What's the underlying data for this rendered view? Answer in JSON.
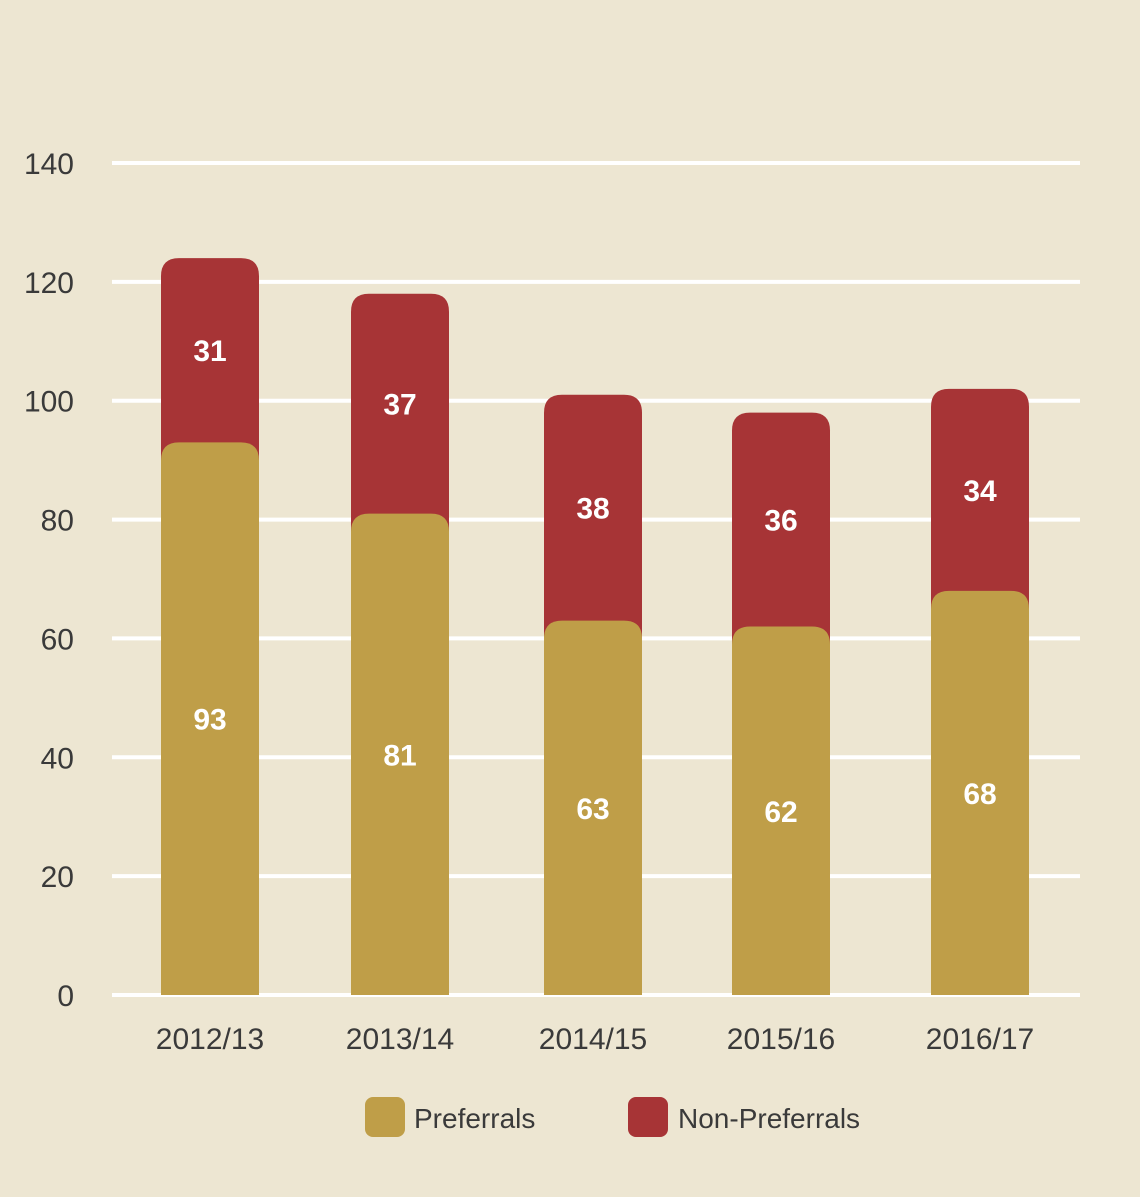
{
  "chart_data": {
    "type": "bar",
    "stacked": true,
    "categories": [
      "2012/13",
      "2013/14",
      "2014/15",
      "2015/16",
      "2016/17"
    ],
    "series": [
      {
        "name": "Preferrals",
        "values": [
          93,
          81,
          63,
          62,
          68
        ],
        "color": "#bf9e48"
      },
      {
        "name": "Non-Preferrals",
        "values": [
          31,
          37,
          38,
          36,
          34
        ],
        "color": "#a73436"
      }
    ],
    "ylim": [
      0,
      140
    ],
    "yticks": [
      0,
      20,
      40,
      60,
      80,
      100,
      120,
      140
    ],
    "grid": true,
    "grid_color": "#ffffff",
    "legend": "bottom-center",
    "data_labels": true,
    "title": "",
    "xlabel": "",
    "ylabel": ""
  },
  "colors": {
    "background": "#ede6d2",
    "text": "#3a3a3a",
    "label": "#ffffff"
  }
}
